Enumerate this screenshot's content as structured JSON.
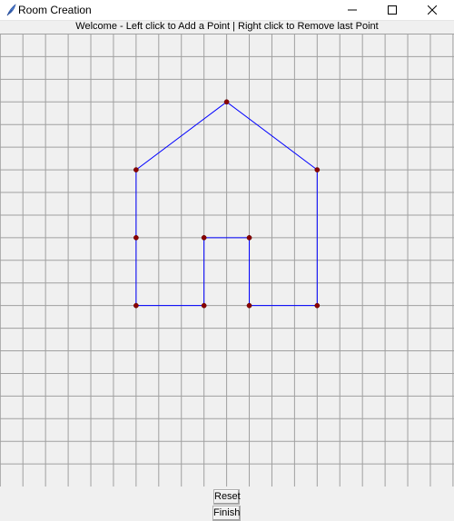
{
  "window": {
    "title": "Room Creation"
  },
  "instruction": "Welcome - Left click to Add a Point | Right click to Remove last Point",
  "canvas": {
    "grid_color": "#a0a0a0",
    "background": "#f0f0f0",
    "line_color": "#0000ff",
    "point_color": "#8b0000",
    "shapes": [
      {
        "name": "house-outline",
        "points": [
          [
            6,
            6
          ],
          [
            6,
            3
          ],
          [
            10,
            0
          ],
          [
            14,
            3
          ],
          [
            14,
            9
          ],
          [
            11,
            9
          ],
          [
            11,
            6
          ],
          [
            9,
            6
          ],
          [
            9,
            9
          ],
          [
            6,
            9
          ]
        ]
      }
    ]
  },
  "buttons": {
    "reset_label": "Reset",
    "finish_label": "Finish"
  }
}
